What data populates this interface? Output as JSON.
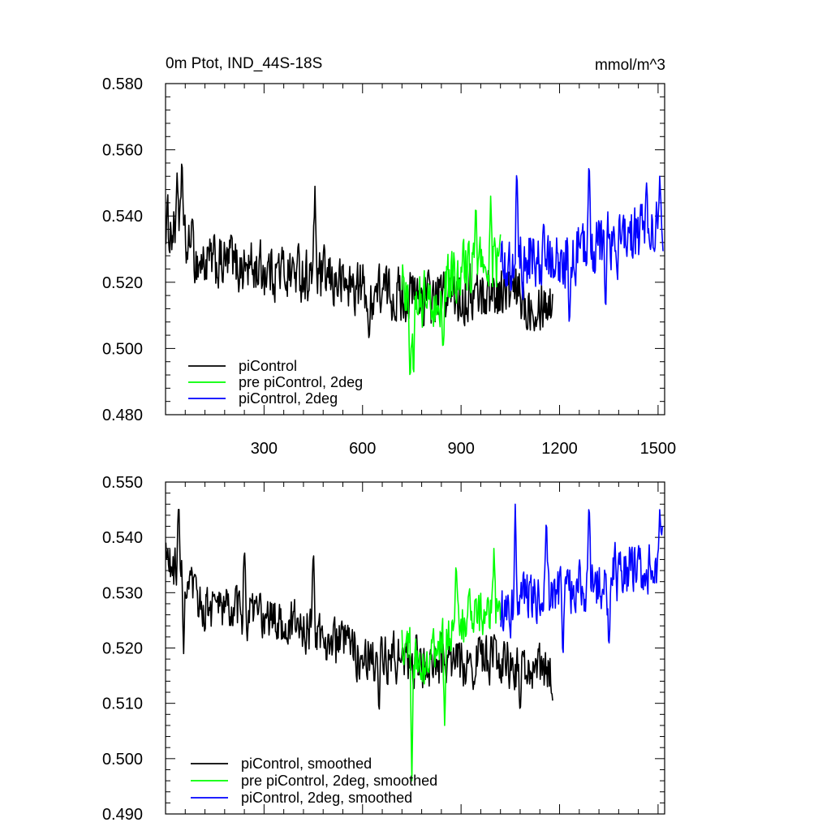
{
  "chart_data": [
    {
      "type": "line",
      "title": "0m Ptot, IND_44S-18S",
      "units": "mmol/m^3",
      "xlabel": "",
      "ylabel": "",
      "xlim": [
        0,
        1520
      ],
      "ylim": [
        0.48,
        0.58
      ],
      "xticks": [
        300,
        600,
        900,
        1200,
        1500
      ],
      "xtick_labels": [
        "300",
        "600",
        "900",
        "1200",
        "1500"
      ],
      "yticks": [
        0.48,
        0.5,
        0.52,
        0.54,
        0.56,
        0.58
      ],
      "ytick_labels": [
        "0.480",
        "0.500",
        "0.520",
        "0.540",
        "0.560",
        "0.580"
      ],
      "legend_position": "bottom-left",
      "series": [
        {
          "name": "piControl",
          "color": "#000000",
          "x_start": 1,
          "x_end": 1180,
          "trend": [
            [
              0,
              0.538
            ],
            [
              100,
              0.526
            ],
            [
              400,
              0.523
            ],
            [
              600,
              0.518
            ],
            [
              800,
              0.515
            ],
            [
              1000,
              0.517
            ],
            [
              1180,
              0.514
            ]
          ],
          "noise": 0.0075,
          "features": [
            [
              35,
              0.553
            ],
            [
              50,
              0.56
            ],
            [
              80,
              0.54
            ],
            [
              200,
              0.535
            ],
            [
              455,
              0.549
            ],
            [
              620,
              0.5
            ],
            [
              1100,
              0.505
            ]
          ]
        },
        {
          "name": "pre piControl, 2deg",
          "color": "#00ff00",
          "x_start": 720,
          "x_end": 1020,
          "trend": [
            [
              720,
              0.52
            ],
            [
              800,
              0.513
            ],
            [
              900,
              0.523
            ],
            [
              1020,
              0.526
            ]
          ],
          "noise": 0.008,
          "features": [
            [
              745,
              0.487
            ],
            [
              755,
              0.488
            ],
            [
              845,
              0.497
            ],
            [
              945,
              0.546
            ],
            [
              990,
              0.546
            ]
          ]
        },
        {
          "name": "piControl, 2deg",
          "color": "#0000ff",
          "x_start": 1021,
          "x_end": 1515,
          "trend": [
            [
              1021,
              0.525
            ],
            [
              1100,
              0.527
            ],
            [
              1200,
              0.528
            ],
            [
              1350,
              0.532
            ],
            [
              1515,
              0.535
            ]
          ],
          "noise": 0.0085,
          "features": [
            [
              1070,
              0.556
            ],
            [
              1230,
              0.506
            ],
            [
              1290,
              0.56
            ],
            [
              1340,
              0.51
            ],
            [
              1465,
              0.55
            ],
            [
              1505,
              0.552
            ]
          ]
        }
      ]
    },
    {
      "type": "line",
      "title": "",
      "xlabel": "",
      "ylabel": "",
      "xlim": [
        0,
        1520
      ],
      "ylim": [
        0.49,
        0.55
      ],
      "xticks": [
        300,
        600,
        900,
        1200,
        1500
      ],
      "xtick_labels": [],
      "yticks": [
        0.49,
        0.5,
        0.51,
        0.52,
        0.53,
        0.54,
        0.55
      ],
      "ytick_labels": [
        "0.490",
        "0.500",
        "0.510",
        "0.520",
        "0.530",
        "0.540",
        "0.550"
      ],
      "legend_position": "bottom-left",
      "series": [
        {
          "name": "piControl, smoothed",
          "color": "#000000",
          "x_start": 1,
          "x_end": 1180,
          "trend": [
            [
              0,
              0.536
            ],
            [
              100,
              0.528
            ],
            [
              400,
              0.524
            ],
            [
              600,
              0.519
            ],
            [
              800,
              0.517
            ],
            [
              1000,
              0.518
            ],
            [
              1180,
              0.515
            ]
          ],
          "noise": 0.004,
          "features": [
            [
              40,
              0.548
            ],
            [
              55,
              0.519
            ],
            [
              240,
              0.539
            ],
            [
              450,
              0.539
            ],
            [
              650,
              0.507
            ],
            [
              1080,
              0.508
            ]
          ]
        },
        {
          "name": "pre piControl, 2deg, smoothed",
          "color": "#00ff00",
          "x_start": 720,
          "x_end": 1020,
          "trend": [
            [
              720,
              0.52
            ],
            [
              800,
              0.517
            ],
            [
              900,
              0.525
            ],
            [
              1020,
              0.526
            ]
          ],
          "noise": 0.004,
          "features": [
            [
              750,
              0.496
            ],
            [
              850,
              0.506
            ],
            [
              885,
              0.536
            ],
            [
              1000,
              0.538
            ]
          ]
        },
        {
          "name": "piControl, 2deg, smoothed",
          "color": "#0000ff",
          "x_start": 1021,
          "x_end": 1515,
          "trend": [
            [
              1021,
              0.526
            ],
            [
              1100,
              0.529
            ],
            [
              1200,
              0.53
            ],
            [
              1350,
              0.533
            ],
            [
              1515,
              0.536
            ]
          ],
          "noise": 0.0045,
          "features": [
            [
              1065,
              0.546
            ],
            [
              1160,
              0.545
            ],
            [
              1210,
              0.517
            ],
            [
              1290,
              0.548
            ],
            [
              1350,
              0.519
            ],
            [
              1505,
              0.545
            ]
          ]
        }
      ]
    }
  ]
}
